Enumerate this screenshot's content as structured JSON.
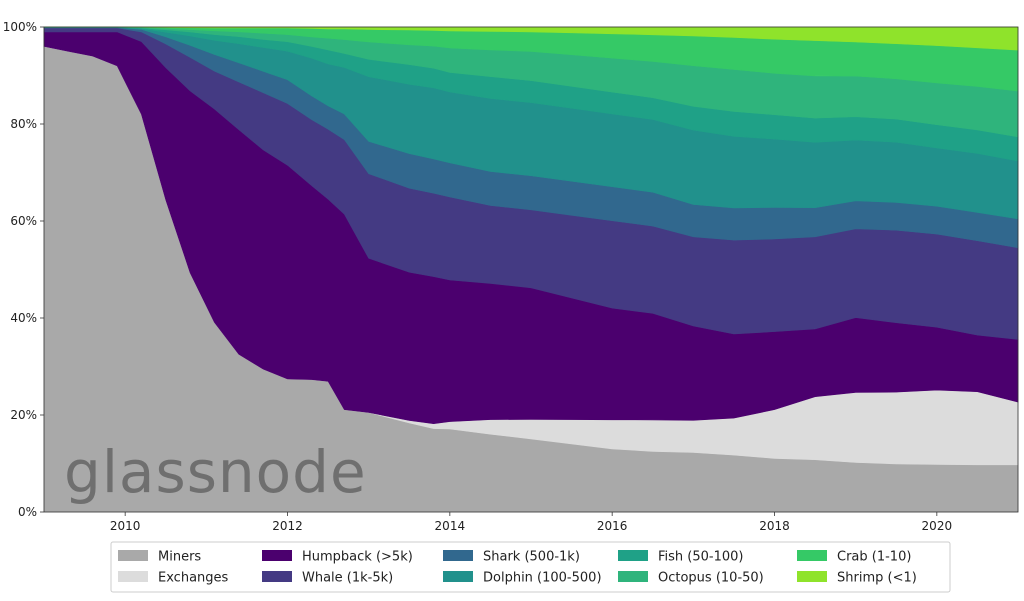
{
  "watermark": "glassnode",
  "chart_data": {
    "type": "area",
    "stacked": true,
    "normalized": true,
    "xlim": [
      2009.0,
      2021.0
    ],
    "ylim": [
      0,
      100
    ],
    "x_ticks": [
      2010,
      2012,
      2014,
      2016,
      2018,
      2020
    ],
    "x_tick_labels": [
      "2010",
      "2012",
      "2014",
      "2016",
      "2018",
      "2020"
    ],
    "y_ticks": [
      0,
      20,
      40,
      60,
      80,
      100
    ],
    "y_tick_labels": [
      "0%",
      "20%",
      "40%",
      "60%",
      "80%",
      "100%"
    ],
    "grid": false,
    "legend_position": "bottom",
    "x": [
      2009.0,
      2009.3,
      2009.6,
      2009.9,
      2010.2,
      2010.5,
      2010.8,
      2011.1,
      2011.4,
      2011.7,
      2012.0,
      2012.3,
      2012.5,
      2012.7,
      2013.0,
      2013.5,
      2013.8,
      2014.0,
      2014.5,
      2015.0,
      2015.5,
      2016.0,
      2016.5,
      2017.0,
      2017.5,
      2018.0,
      2018.5,
      2019.0,
      2019.5,
      2020.0,
      2020.5,
      2021.0
    ],
    "series": [
      {
        "name": "Miners",
        "color": "#a9a9a9",
        "values": [
          96,
          95,
          94,
          92,
          82,
          66,
          50,
          40,
          33,
          30,
          28,
          28,
          28,
          22,
          20,
          18,
          17,
          17,
          16,
          15,
          14,
          13,
          12.5,
          12,
          11.5,
          11,
          10.8,
          10.6,
          10.4,
          10.2,
          10,
          9.8
        ]
      },
      {
        "name": "Exchanges",
        "color": "#dcdcdc",
        "values": [
          0,
          0,
          0,
          0,
          0,
          0,
          0,
          0,
          0,
          0,
          0,
          0,
          0,
          0,
          0,
          0.5,
          1,
          1.5,
          3,
          4,
          5,
          6,
          6.5,
          6.5,
          7.5,
          10,
          13,
          15,
          15.5,
          16,
          15.5,
          13
        ]
      },
      {
        "name": "Humpback (>5k)",
        "color": "#4b006e",
        "values": [
          3,
          4,
          5,
          7,
          15,
          28,
          38,
          45,
          47,
          46,
          45,
          41,
          39,
          42,
          31,
          30,
          30,
          29,
          28,
          27,
          25,
          23,
          22,
          19,
          17,
          16,
          14,
          16,
          15,
          13.5,
          12,
          13
        ]
      },
      {
        "name": "Whale (1k-5k)",
        "color": "#443a83",
        "values": [
          0.8,
          0.8,
          0.8,
          0.8,
          2,
          5,
          7,
          8,
          10,
          12,
          13,
          14,
          15,
          16,
          17,
          17,
          17,
          17,
          16,
          16,
          17,
          18,
          18,
          18,
          19,
          19,
          19,
          19,
          20,
          20,
          20,
          19
        ]
      },
      {
        "name": "Shark (500-1k)",
        "color": "#31688e",
        "values": [
          0.1,
          0.1,
          0.1,
          0.1,
          0.5,
          1.5,
          2.5,
          3.5,
          4,
          4.5,
          5,
          5,
          5,
          5.5,
          6.5,
          7,
          7,
          7,
          7,
          7,
          7,
          7,
          7,
          6.5,
          6.5,
          6.5,
          6,
          6,
          6,
          6,
          6,
          6
        ]
      },
      {
        "name": "Dolphin (100-500)",
        "color": "#21918c",
        "values": [
          0.05,
          0.05,
          0.05,
          0.05,
          0.2,
          1,
          2,
          3,
          4,
          5,
          6,
          8,
          9,
          10,
          13,
          14,
          14.5,
          14.5,
          15,
          15,
          15,
          15,
          15,
          15,
          14.5,
          14,
          13.5,
          13,
          13,
          12.5,
          12.5,
          12
        ]
      },
      {
        "name": "Fish (50-100)",
        "color": "#1fa187",
        "values": [
          0.02,
          0.02,
          0.02,
          0.02,
          0.1,
          0.5,
          0.8,
          1.2,
          1.5,
          1.7,
          2,
          2.5,
          3,
          3,
          3.5,
          4,
          4,
          4,
          4.5,
          4.5,
          4.5,
          4.5,
          4.5,
          4.8,
          5,
          5,
          5,
          5,
          5,
          5,
          5,
          5
        ]
      },
      {
        "name": "Octopus (10-50)",
        "color": "#2fb47c",
        "values": [
          0.01,
          0.01,
          0.01,
          0.01,
          0.1,
          0.3,
          0.5,
          0.8,
          1,
          1.3,
          1.5,
          2,
          2.5,
          3,
          3.5,
          4,
          4.5,
          5,
          5.5,
          6,
          6.5,
          7,
          7.5,
          8.2,
          8.5,
          8.5,
          8.7,
          8.7,
          8.7,
          9,
          9.2,
          9.5
        ]
      },
      {
        "name": "Crab (1-10)",
        "color": "#35c966",
        "values": [
          0.01,
          0.01,
          0.01,
          0.01,
          0.05,
          0.2,
          0.4,
          0.6,
          0.8,
          1.1,
          1.4,
          1.8,
          2,
          2.3,
          2.5,
          3,
          3.2,
          3.5,
          3.8,
          4,
          4.5,
          5,
          5.5,
          6,
          6.5,
          7,
          7.3,
          7.3,
          7.6,
          8,
          8.2,
          8.5
        ]
      },
      {
        "name": "Shrimp (<1)",
        "color": "#8fe32b",
        "values": [
          0.01,
          0.01,
          0.01,
          0.01,
          0.05,
          0.1,
          0.15,
          0.2,
          0.2,
          0.2,
          0.2,
          0.3,
          0.4,
          0.4,
          0.5,
          0.6,
          0.7,
          0.8,
          0.9,
          1,
          1.2,
          1.4,
          1.6,
          1.8,
          2.1,
          2.5,
          2.8,
          3.2,
          3.6,
          4,
          4.4,
          4.8
        ]
      }
    ]
  }
}
